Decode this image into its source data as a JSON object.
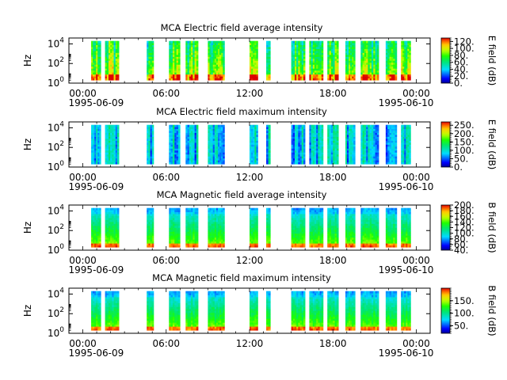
{
  "chart_data": [
    {
      "type": "heatmap",
      "title": "MCA  Electric field average intensity",
      "ylabel": "Hz",
      "colorbar_label": "E field (dB)",
      "colorbar_ticks": [
        "0.",
        "20.",
        "40.",
        "60.",
        "80.",
        "100.",
        "120."
      ],
      "colorbar_range": [
        0,
        130
      ],
      "ylim_exponent": [
        0,
        4.6
      ],
      "ytick_exponents": [
        "0",
        "2",
        "4"
      ],
      "xticks": [
        "00:00",
        "06:00",
        "12:00",
        "18:00",
        "00:00"
      ],
      "x_dates": [
        "1995-06-09",
        "1995-06-10"
      ],
      "intensity_profile": "average"
    },
    {
      "type": "heatmap",
      "title": "MCA  Electric field maximum intensity",
      "ylabel": "Hz",
      "colorbar_label": "E field (dB)",
      "colorbar_ticks": [
        "0.",
        "50.",
        "100.",
        "150.",
        "200.",
        "250."
      ],
      "colorbar_range": [
        0,
        270
      ],
      "ylim_exponent": [
        0,
        4.6
      ],
      "ytick_exponents": [
        "0",
        "2",
        "4"
      ],
      "xticks": [
        "00:00",
        "06:00",
        "12:00",
        "18:00",
        "00:00"
      ],
      "x_dates": [
        "1995-06-09",
        "1995-06-10"
      ],
      "intensity_profile": "electric-max"
    },
    {
      "type": "heatmap",
      "title": "MCA  Magnetic field average intensity",
      "ylabel": "Hz",
      "colorbar_label": "B field (dB)",
      "colorbar_ticks": [
        "40.",
        "60.",
        "80.",
        "100.",
        "120.",
        "140.",
        "160.",
        "180.",
        "200."
      ],
      "colorbar_range": [
        40,
        200
      ],
      "ylim_exponent": [
        0,
        4.6
      ],
      "ytick_exponents": [
        "0",
        "2",
        "4"
      ],
      "xticks": [
        "00:00",
        "06:00",
        "12:00",
        "18:00",
        "00:00"
      ],
      "x_dates": [
        "1995-06-09",
        "1995-06-10"
      ],
      "intensity_profile": "magnetic"
    },
    {
      "type": "heatmap",
      "title": "MCA  Magnetic field maximum intensity",
      "ylabel": "Hz",
      "colorbar_label": "B field (dB)",
      "colorbar_ticks": [
        "50.",
        "100.",
        "150."
      ],
      "colorbar_range": [
        20,
        200
      ],
      "ylim_exponent": [
        0,
        4.6
      ],
      "ytick_exponents": [
        "0",
        "2",
        "4"
      ],
      "xticks": [
        "00:00",
        "06:00",
        "12:00",
        "18:00",
        "00:00"
      ],
      "x_dates": [
        "1995-06-09",
        "1995-06-10"
      ],
      "intensity_profile": "magnetic"
    }
  ],
  "data_intervals_hours": [
    [
      0.6,
      1.3
    ],
    [
      1.6,
      2.6
    ],
    [
      4.6,
      5.1
    ],
    [
      6.2,
      7.0
    ],
    [
      7.4,
      8.3
    ],
    [
      9.0,
      10.2
    ],
    [
      12.0,
      12.6
    ],
    [
      13.2,
      13.5
    ],
    [
      15.0,
      16.0
    ],
    [
      16.3,
      17.3
    ],
    [
      17.6,
      18.4
    ],
    [
      18.9,
      19.6
    ],
    [
      20.0,
      21.3
    ],
    [
      21.8,
      22.6
    ],
    [
      22.9,
      23.6
    ]
  ],
  "x_range_hours": [
    -1,
    25
  ],
  "colors": {
    "background": "#ffffff",
    "axis": "#000000"
  },
  "colormap": "rainbow (blue-cyan-green-yellow-red)"
}
